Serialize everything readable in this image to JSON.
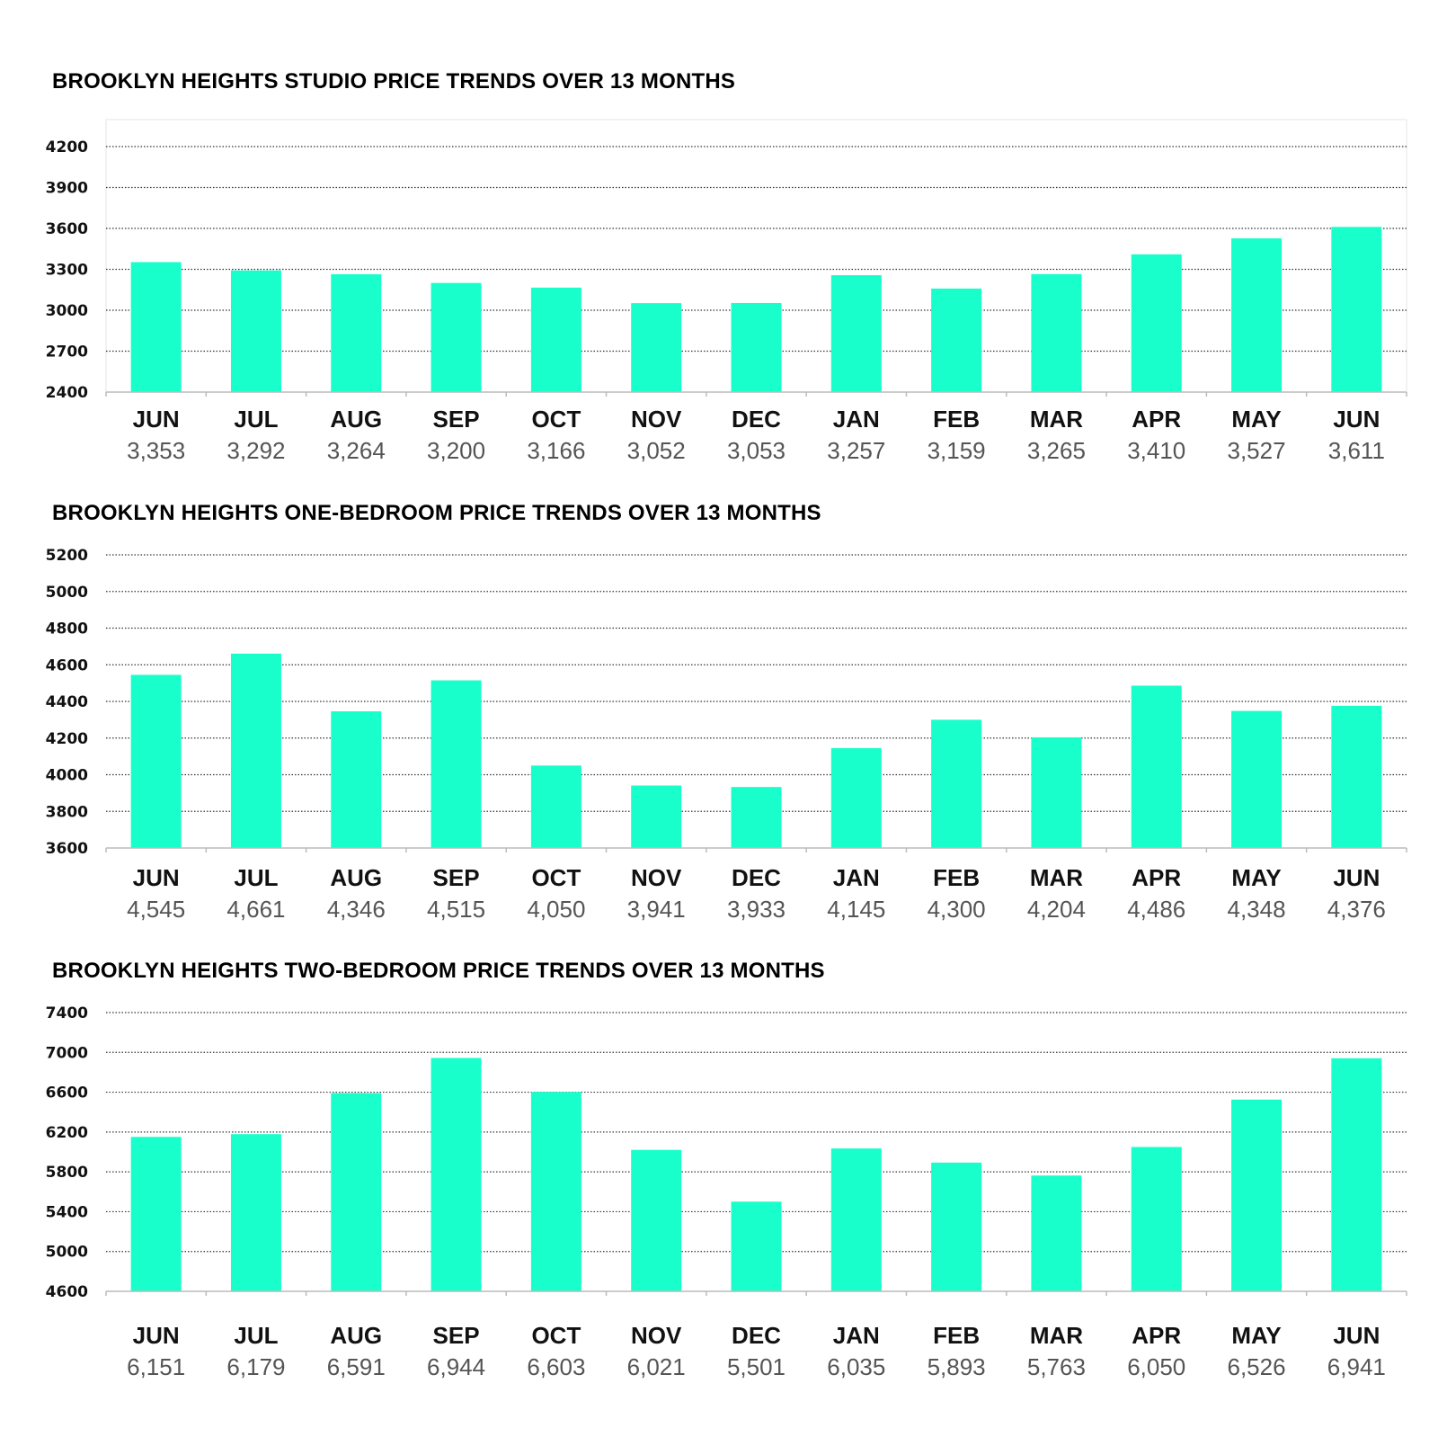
{
  "colors": {
    "bar": "#19ffcc",
    "grid": "#333333",
    "axis": "#bbbbbb",
    "month_text": "#111111",
    "value_text": "#555555"
  },
  "chart_data": [
    {
      "type": "bar",
      "title": "BROOKLYN HEIGHTS STUDIO PRICE TRENDS OVER 13 MONTHS",
      "categories": [
        "JUN",
        "JUL",
        "AUG",
        "SEP",
        "OCT",
        "NOV",
        "DEC",
        "JAN",
        "FEB",
        "MAR",
        "APR",
        "MAY",
        "JUN"
      ],
      "values": [
        3353,
        3292,
        3264,
        3200,
        3166,
        3052,
        3053,
        3257,
        3159,
        3265,
        3410,
        3527,
        3611
      ],
      "value_labels": [
        "3,353",
        "3,292",
        "3,264",
        "3,200",
        "3,166",
        "3,052",
        "3,053",
        "3,257",
        "3,159",
        "3,265",
        "3,410",
        "3,527",
        "3,611"
      ],
      "ylim": [
        2400,
        4200
      ],
      "yticks": [
        2400,
        2700,
        3000,
        3300,
        3600,
        3900,
        4200
      ],
      "ytick_labels": [
        "2400",
        "2700",
        "3000",
        "3300",
        "3600",
        "3900",
        "4200"
      ],
      "grid": "dotted horizontal",
      "plot_border": true
    },
    {
      "type": "bar",
      "title": "BROOKLYN HEIGHTS ONE-BEDROOM PRICE TRENDS OVER 13 MONTHS",
      "categories": [
        "JUN",
        "JUL",
        "AUG",
        "SEP",
        "OCT",
        "NOV",
        "DEC",
        "JAN",
        "FEB",
        "MAR",
        "APR",
        "MAY",
        "JUN"
      ],
      "values": [
        4545,
        4661,
        4346,
        4515,
        4050,
        3941,
        3933,
        4145,
        4300,
        4204,
        4486,
        4348,
        4376
      ],
      "value_labels": [
        "4,545",
        "4,661",
        "4,346",
        "4,515",
        "4,050",
        "3,941",
        "3,933",
        "4,145",
        "4,300",
        "4,204",
        "4,486",
        "4,348",
        "4,376"
      ],
      "ylim": [
        3600,
        5200
      ],
      "yticks": [
        3600,
        3800,
        4000,
        4200,
        4400,
        4600,
        4800,
        5000,
        5200
      ],
      "ytick_labels": [
        "3600",
        "3800",
        "4000",
        "4200",
        "4400",
        "4600",
        "4800",
        "5000",
        "5200"
      ],
      "grid": "dotted horizontal",
      "plot_border": false
    },
    {
      "type": "bar",
      "title": "BROOKLYN HEIGHTS TWO-BEDROOM PRICE TRENDS OVER 13 MONTHS",
      "categories": [
        "JUN",
        "JUL",
        "AUG",
        "SEP",
        "OCT",
        "NOV",
        "DEC",
        "JAN",
        "FEB",
        "MAR",
        "APR",
        "MAY",
        "JUN"
      ],
      "values": [
        6151,
        6179,
        6591,
        6944,
        6603,
        6021,
        5501,
        6035,
        5893,
        5763,
        6050,
        6526,
        6941
      ],
      "value_labels": [
        "6,151",
        "6,179",
        "6,591",
        "6,944",
        "6,603",
        "6,021",
        "5,501",
        "6,035",
        "5,893",
        "5,763",
        "6,050",
        "6,526",
        "6,941"
      ],
      "ylim": [
        4600,
        7400
      ],
      "yticks": [
        4600,
        5000,
        5400,
        5800,
        6200,
        6600,
        7000,
        7400
      ],
      "ytick_labels": [
        "4600",
        "5000",
        "5400",
        "5800",
        "6200",
        "6600",
        "7000",
        "7400"
      ],
      "grid": "dotted horizontal",
      "plot_border": false
    }
  ]
}
